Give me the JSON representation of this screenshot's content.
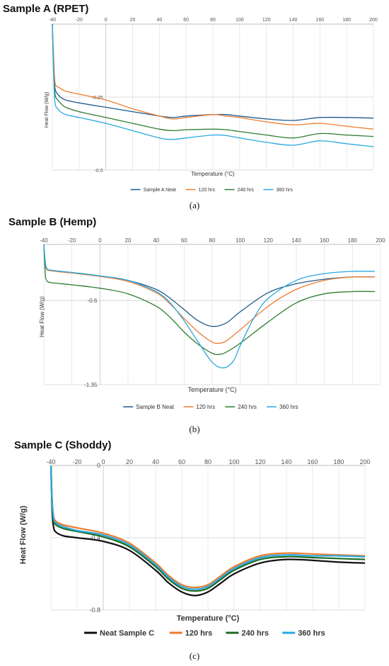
{
  "captions": [
    "(a)",
    "(b)",
    "(c)"
  ],
  "chart_data": [
    {
      "type": "line",
      "title": "Sample A (RPET)",
      "xlabel": "Temperature (°C)",
      "ylabel": "Heat Flow (W/g)",
      "xlim": [
        -40,
        200
      ],
      "ylim": [
        -0.5,
        0
      ],
      "xticks": [
        "-40",
        "-20",
        "0",
        "20",
        "40",
        "60",
        "80",
        "100",
        "120",
        "140",
        "160",
        "180",
        "200"
      ],
      "yticks": [
        "-0.25",
        "-0.5"
      ],
      "colors": [
        "#1f5a8c",
        "#ed7d31",
        "#2e7d32",
        "#29a9e0"
      ],
      "series": [
        {
          "name": "Sample A Neat",
          "x": [
            -40,
            -39,
            -38,
            -36,
            -34,
            -30,
            -20,
            0,
            20,
            40,
            50,
            60,
            80,
            90,
            100,
            120,
            140,
            160,
            180,
            200
          ],
          "y": [
            0,
            -0.15,
            -0.22,
            -0.24,
            -0.25,
            -0.26,
            -0.27,
            -0.285,
            -0.3,
            -0.315,
            -0.32,
            -0.315,
            -0.31,
            -0.31,
            -0.315,
            -0.325,
            -0.33,
            -0.32,
            -0.32,
            -0.322
          ]
        },
        {
          "name": "120 hrs",
          "x": [
            -40,
            -39,
            -38,
            -36,
            -34,
            -30,
            -20,
            0,
            20,
            40,
            50,
            60,
            80,
            90,
            100,
            120,
            140,
            160,
            180,
            200
          ],
          "y": [
            0,
            -0.12,
            -0.2,
            -0.215,
            -0.22,
            -0.23,
            -0.24,
            -0.26,
            -0.29,
            -0.315,
            -0.325,
            -0.32,
            -0.31,
            -0.315,
            -0.32,
            -0.335,
            -0.345,
            -0.34,
            -0.35,
            -0.36
          ]
        },
        {
          "name": "240 hrs",
          "x": [
            -40,
            -39,
            -38,
            -36,
            -34,
            -30,
            -20,
            0,
            20,
            40,
            50,
            60,
            80,
            90,
            100,
            120,
            140,
            160,
            180,
            200
          ],
          "y": [
            0,
            -0.16,
            -0.24,
            -0.26,
            -0.27,
            -0.285,
            -0.3,
            -0.32,
            -0.34,
            -0.36,
            -0.365,
            -0.362,
            -0.36,
            -0.362,
            -0.368,
            -0.38,
            -0.39,
            -0.375,
            -0.38,
            -0.385
          ]
        },
        {
          "name": "360 hrs",
          "x": [
            -40,
            -39,
            -38,
            -36,
            -34,
            -30,
            -20,
            0,
            20,
            40,
            50,
            60,
            80,
            90,
            100,
            120,
            140,
            160,
            180,
            200
          ],
          "y": [
            0,
            -0.18,
            -0.27,
            -0.29,
            -0.3,
            -0.31,
            -0.32,
            -0.34,
            -0.365,
            -0.39,
            -0.395,
            -0.39,
            -0.38,
            -0.382,
            -0.39,
            -0.405,
            -0.415,
            -0.4,
            -0.41,
            -0.42
          ]
        }
      ]
    },
    {
      "type": "line",
      "title": "Sample B (Hemp)",
      "xlabel": "Temperature (°C)",
      "ylabel": "Heat Flow (W/g)",
      "xlim": [
        -40,
        200
      ],
      "ylim": [
        -1.35,
        -0.1
      ],
      "xticks": [
        "-40",
        "-20",
        "0",
        "20",
        "40",
        "60",
        "80",
        "100",
        "120",
        "140",
        "160",
        "180",
        "200"
      ],
      "yticks": [
        "-0.6",
        "-1.35"
      ],
      "colors": [
        "#1f5a8c",
        "#ed7d31",
        "#2e7d32",
        "#29a9e0"
      ],
      "series": [
        {
          "name": "Sample B Neat",
          "x": [
            -40,
            -39,
            -38,
            -35,
            -20,
            0,
            20,
            40,
            50,
            60,
            70,
            80,
            90,
            100,
            120,
            140,
            160,
            180,
            196
          ],
          "y": [
            -0.1,
            -0.27,
            -0.32,
            -0.33,
            -0.35,
            -0.38,
            -0.42,
            -0.5,
            -0.58,
            -0.68,
            -0.78,
            -0.83,
            -0.8,
            -0.7,
            -0.53,
            -0.45,
            -0.41,
            -0.39,
            -0.39
          ]
        },
        {
          "name": "120 hrs",
          "x": [
            -40,
            -39,
            -38,
            -35,
            -20,
            0,
            20,
            40,
            50,
            60,
            70,
            80,
            85,
            90,
            100,
            120,
            140,
            160,
            180,
            196
          ],
          "y": [
            -0.1,
            -0.27,
            -0.32,
            -0.335,
            -0.355,
            -0.385,
            -0.43,
            -0.53,
            -0.63,
            -0.76,
            -0.88,
            -0.97,
            -0.98,
            -0.96,
            -0.86,
            -0.65,
            -0.5,
            -0.42,
            -0.39,
            -0.39
          ]
        },
        {
          "name": "240 hrs",
          "x": [
            -40,
            -39,
            -38,
            -35,
            -20,
            0,
            20,
            40,
            50,
            60,
            70,
            80,
            85,
            90,
            100,
            120,
            140,
            160,
            180,
            196
          ],
          "y": [
            -0.1,
            -0.36,
            -0.42,
            -0.44,
            -0.46,
            -0.49,
            -0.54,
            -0.65,
            -0.75,
            -0.88,
            -0.99,
            -1.07,
            -1.08,
            -1.06,
            -0.98,
            -0.79,
            -0.62,
            -0.54,
            -0.52,
            -0.52
          ]
        },
        {
          "name": "360 hrs",
          "x": [
            -40,
            -39,
            -38,
            -35,
            -20,
            0,
            20,
            40,
            50,
            60,
            70,
            80,
            88,
            95,
            100,
            110,
            120,
            140,
            160,
            180,
            196
          ],
          "y": [
            -0.1,
            -0.25,
            -0.31,
            -0.33,
            -0.35,
            -0.38,
            -0.42,
            -0.52,
            -0.62,
            -0.78,
            -0.97,
            -1.15,
            -1.2,
            -1.14,
            -1.0,
            -0.75,
            -0.58,
            -0.42,
            -0.36,
            -0.34,
            -0.34
          ]
        }
      ]
    },
    {
      "type": "line",
      "title": "Sample C (Shoddy)",
      "xlabel": "Temperature (°C)",
      "ylabel": "Heat Flow (W/g)",
      "xlim": [
        -40,
        200
      ],
      "ylim": [
        -0.8,
        0
      ],
      "xticks": [
        "-40",
        "-20",
        "0",
        "20",
        "40",
        "60",
        "80",
        "100",
        "120",
        "140",
        "160",
        "180",
        "200"
      ],
      "yticks": [
        "0",
        "-0.4",
        "-0.8"
      ],
      "colors": [
        "#111111",
        "#ed7d31",
        "#1e6b24",
        "#29a9e0"
      ],
      "series": [
        {
          "name": "Neat Sample C",
          "x": [
            -40,
            -39,
            -38,
            -36,
            -30,
            -20,
            0,
            20,
            40,
            50,
            60,
            70,
            80,
            90,
            100,
            120,
            140,
            160,
            180,
            200
          ],
          "y": [
            0,
            -0.25,
            -0.34,
            -0.37,
            -0.39,
            -0.4,
            -0.42,
            -0.47,
            -0.58,
            -0.65,
            -0.7,
            -0.72,
            -0.7,
            -0.65,
            -0.6,
            -0.54,
            -0.52,
            -0.525,
            -0.535,
            -0.54
          ]
        },
        {
          "name": "120 hrs",
          "x": [
            -40,
            -39,
            -38,
            -36,
            -30,
            -20,
            0,
            20,
            40,
            50,
            60,
            70,
            80,
            90,
            100,
            120,
            140,
            160,
            180,
            200
          ],
          "y": [
            0,
            -0.2,
            -0.28,
            -0.31,
            -0.33,
            -0.345,
            -0.375,
            -0.43,
            -0.54,
            -0.61,
            -0.66,
            -0.675,
            -0.66,
            -0.61,
            -0.56,
            -0.5,
            -0.485,
            -0.49,
            -0.495,
            -0.5
          ]
        },
        {
          "name": "240 hrs",
          "x": [
            -40,
            -39,
            -38,
            -36,
            -30,
            -20,
            0,
            20,
            40,
            50,
            60,
            70,
            80,
            90,
            100,
            120,
            140,
            160,
            180,
            200
          ],
          "y": [
            0,
            -0.22,
            -0.3,
            -0.33,
            -0.35,
            -0.365,
            -0.395,
            -0.45,
            -0.56,
            -0.63,
            -0.68,
            -0.695,
            -0.68,
            -0.63,
            -0.58,
            -0.52,
            -0.505,
            -0.51,
            -0.515,
            -0.52
          ]
        },
        {
          "name": "360 hrs",
          "x": [
            -40,
            -39,
            -38,
            -36,
            -30,
            -20,
            0,
            20,
            40,
            50,
            60,
            70,
            80,
            90,
            100,
            120,
            140,
            160,
            180,
            200
          ],
          "y": [
            0,
            -0.21,
            -0.29,
            -0.32,
            -0.34,
            -0.36,
            -0.385,
            -0.44,
            -0.55,
            -0.62,
            -0.67,
            -0.685,
            -0.67,
            -0.62,
            -0.57,
            -0.51,
            -0.495,
            -0.5,
            -0.5,
            -0.505
          ]
        }
      ]
    }
  ]
}
